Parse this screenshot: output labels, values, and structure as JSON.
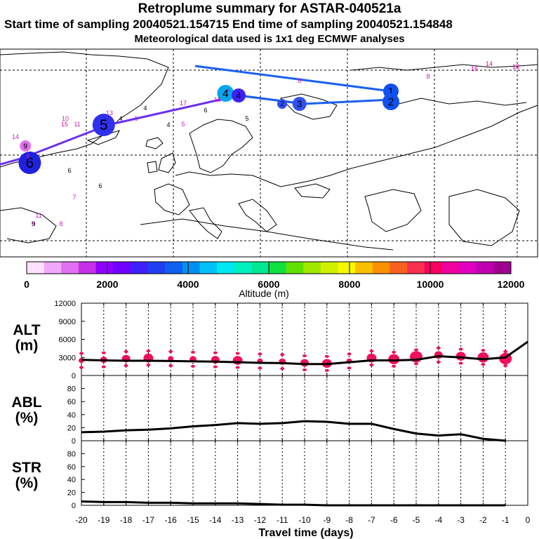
{
  "header": {
    "title": "Retroplume summary for ASTAR-040521a",
    "sampling_line": "Start time of sampling 20040521.154715     End time of sampling 20040521.154848",
    "met_line": "Meteorological data used is 1x1 deg ECMWF analyses"
  },
  "colorbar": {
    "label": "Altitude (m)",
    "tick_labels": [
      "0",
      "2000",
      "4000",
      "6000",
      "8000",
      "10000",
      "12000"
    ],
    "colors": [
      "#ffe0ff",
      "#f0a8f8",
      "#e070f0",
      "#c830e8",
      "#9000ff",
      "#7000ff",
      "#4020f8",
      "#2040f0",
      "#1060f0",
      "#0090f0",
      "#00c0f8",
      "#00e8f0",
      "#00f0c0",
      "#00e890",
      "#10e040",
      "#60e000",
      "#a0e800",
      "#d0f000",
      "#f8f800",
      "#f8c000",
      "#f89000",
      "#f86020",
      "#f83050",
      "#f80060",
      "#f000a0",
      "#e000c0",
      "#c000b0",
      "#a00090"
    ]
  },
  "map": {
    "trajectory": [
      {
        "label": "1",
        "lon": 30,
        "lat": 75
      },
      {
        "label": "2",
        "lon": 30,
        "lat": 73
      },
      {
        "label": "3",
        "lon": 10,
        "lat": 72
      },
      {
        "label": "4",
        "lon": -5,
        "lat": 74
      },
      {
        "label": "5",
        "lon": -35,
        "lat": 67
      },
      {
        "label": "6",
        "lon": -55,
        "lat": 59
      },
      {
        "label": "7",
        "lon": -62,
        "lat": 57
      },
      {
        "label": "8",
        "lon": -70,
        "lat": 60
      }
    ],
    "plume_labels": [
      {
        "label": "1",
        "lon": 30,
        "lat": 75,
        "color": "#1050f0",
        "r": 11
      },
      {
        "label": "2",
        "lon": 30,
        "lat": 72.5,
        "color": "#1050f0",
        "r": 12
      },
      {
        "label": "3",
        "lon": 9,
        "lat": 72,
        "color": "#3050f0",
        "r": 10
      },
      {
        "label": "2",
        "lon": 5,
        "lat": 72,
        "color": "#3050f0",
        "r": 7
      },
      {
        "label": "4",
        "lon": -8,
        "lat": 74.5,
        "color": "#00a8f0",
        "r": 12
      },
      {
        "label": "4",
        "lon": -5,
        "lat": 74,
        "color": "#4020f8",
        "r": 10
      },
      {
        "label": "5",
        "lon": -36,
        "lat": 67,
        "color": "#3030f0",
        "r": 16
      },
      {
        "label": "6",
        "lon": -53,
        "lat": 58,
        "color": "#2020e0",
        "r": 16
      },
      {
        "label": "7",
        "lon": -70,
        "lat": 55,
        "color": "#8020f0",
        "r": 9
      },
      {
        "label": "9",
        "lon": -54,
        "lat": 62,
        "color": "#e070f0",
        "r": 8
      },
      {
        "label": "10",
        "lon": -74,
        "lat": 59,
        "color": "#c040d0",
        "r": 9
      }
    ],
    "scatter_text": [
      "8",
      "8",
      "16",
      "14",
      "13",
      "7",
      "16",
      "10",
      "6",
      "17",
      "13",
      "14",
      "15",
      "11",
      "4",
      "4",
      "6",
      "5",
      "5",
      "4",
      "6",
      "9",
      "8",
      "7",
      "11",
      "9",
      "8",
      "6"
    ]
  },
  "chart_data": [
    {
      "type": "line",
      "name": "ALT",
      "ylabel": "ALT\n(m)",
      "ylabel_lines": [
        "ALT",
        "(m)"
      ],
      "ylim": [
        0,
        12000
      ],
      "yticks": [
        "0",
        "3000",
        "6000",
        "9000",
        "12000"
      ],
      "x": [
        -20,
        -19,
        -18,
        -17,
        -16,
        -15,
        -14,
        -13,
        -12,
        -11,
        -10,
        -9,
        -8,
        -7,
        -6,
        -5,
        -4,
        -3,
        -2,
        -1,
        0
      ],
      "values": [
        2600,
        2500,
        2450,
        2450,
        2400,
        2350,
        2300,
        2200,
        2100,
        2050,
        1900,
        1900,
        2200,
        2500,
        2500,
        2600,
        3200,
        3000,
        2700,
        3000,
        5600
      ],
      "bubble_values": [
        2500,
        2600,
        2800,
        2900,
        2800,
        2700,
        2600,
        2500,
        2400,
        2300,
        2100,
        2000,
        2400,
        2900,
        2700,
        3100,
        3400,
        3200,
        3000,
        2800
      ]
    },
    {
      "type": "line",
      "name": "ABL",
      "ylabel_lines": [
        "ABL",
        "(%)"
      ],
      "ylim": [
        0,
        100
      ],
      "yticks": [
        "0",
        "20",
        "40",
        "60",
        "80"
      ],
      "x": [
        -20,
        -19,
        -18,
        -17,
        -16,
        -15,
        -14,
        -13,
        -12,
        -11,
        -10,
        -9,
        -8,
        -7,
        -6,
        -5,
        -4,
        -3,
        -2,
        -1
      ],
      "values": [
        13,
        14,
        16,
        17,
        19,
        22,
        24,
        27,
        26,
        27,
        30,
        29,
        26,
        26,
        18,
        11,
        8,
        10,
        3,
        0
      ]
    },
    {
      "type": "line",
      "name": "STR",
      "ylabel_lines": [
        "STR",
        "(%)"
      ],
      "ylim": [
        0,
        100
      ],
      "yticks": [
        "0",
        "20",
        "40",
        "60",
        "80"
      ],
      "x": [
        -20,
        -19,
        -18,
        -17,
        -16,
        -15,
        -14,
        -13,
        -12,
        -11,
        -10,
        -9,
        -8,
        -7,
        -6,
        -5,
        -4,
        -3,
        -2,
        -1
      ],
      "values": [
        6,
        5,
        5,
        4,
        4,
        3,
        3,
        3,
        2,
        1,
        1,
        0,
        0,
        0,
        0,
        0,
        0,
        0,
        0,
        0
      ]
    }
  ],
  "xaxis": {
    "label": "Travel time (days)",
    "tick_labels": [
      "-20",
      "-19",
      "-18",
      "-17",
      "-16",
      "-15",
      "-14",
      "-13",
      "-12",
      "-11",
      "-10",
      "-9",
      "-8",
      "-7",
      "-6",
      "-5",
      "-4",
      "-3",
      "-2",
      "-1",
      "0"
    ]
  }
}
